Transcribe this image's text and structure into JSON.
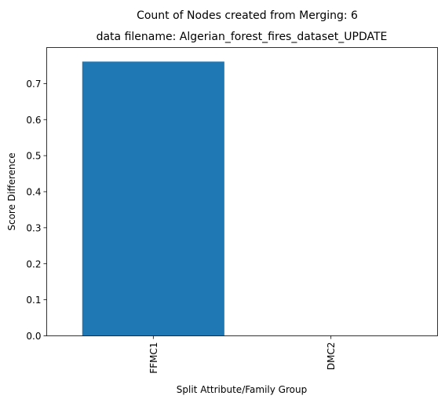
{
  "chart_data": {
    "type": "bar",
    "title": "Count of Nodes created from Merging: 6",
    "subtitle": "data filename: Algerian_forest_fires_dataset_UPDATE",
    "xlabel": "Split Attribute/Family Group",
    "ylabel": "Score Difference",
    "categories": [
      "FFMC1",
      "DMC2"
    ],
    "values": [
      0.761,
      0.0
    ],
    "ylim": [
      0,
      0.8
    ],
    "yticks": [
      0.0,
      0.1,
      0.2,
      0.3,
      0.4,
      0.5,
      0.6,
      0.7
    ],
    "ytick_labels": [
      "0.0",
      "0.1",
      "0.2",
      "0.3",
      "0.4",
      "0.5",
      "0.6",
      "0.7"
    ],
    "bar_color": "#1f77b4",
    "grid": false,
    "legend": "none"
  }
}
